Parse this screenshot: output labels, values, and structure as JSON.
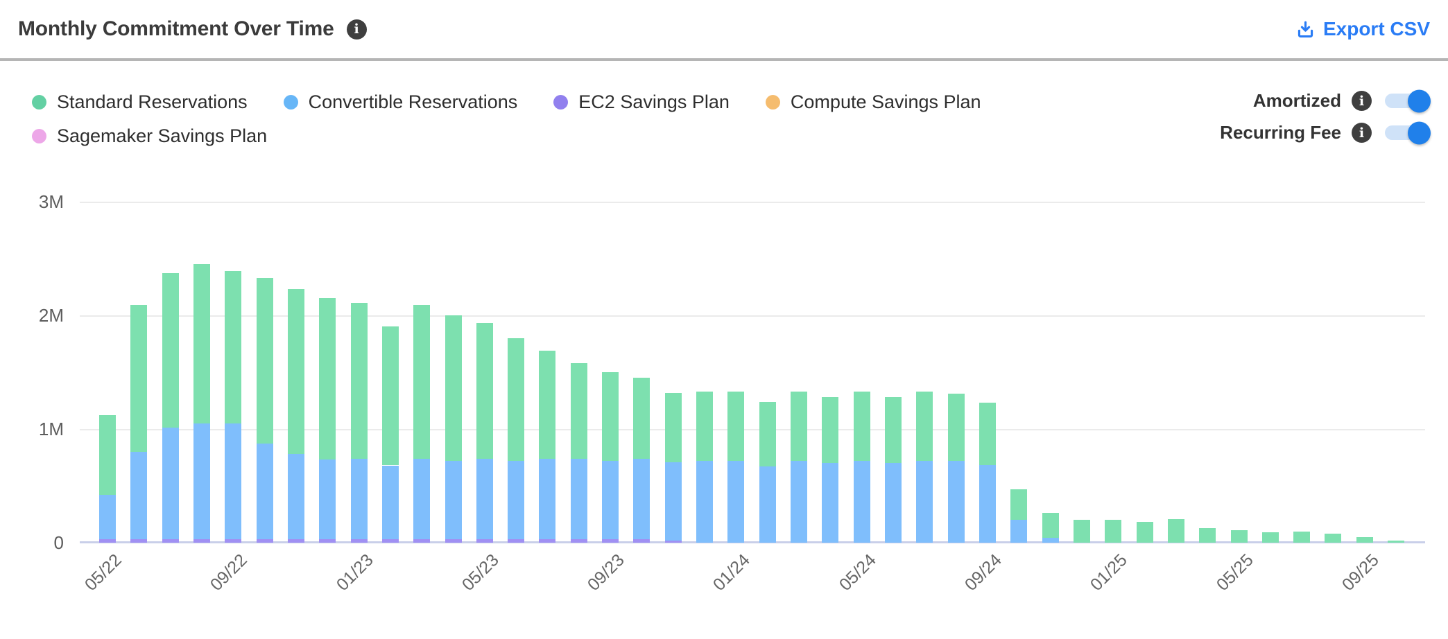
{
  "header": {
    "title": "Monthly Commitment Over Time",
    "export_label": "Export CSV",
    "accent_color": "#2a7cf5"
  },
  "legend": {
    "items": [
      {
        "label": "Standard Reservations",
        "color": "#63d0a3"
      },
      {
        "label": "Convertible Reservations",
        "color": "#67b6f7"
      },
      {
        "label": "EC2 Savings Plan",
        "color": "#9180ee"
      },
      {
        "label": "Compute Savings Plan",
        "color": "#f5bc6e"
      },
      {
        "label": "Sagemaker Savings Plan",
        "color": "#eda7e8"
      }
    ]
  },
  "toggles": [
    {
      "label": "Amortized",
      "state": "on"
    },
    {
      "label": "Recurring Fee",
      "state": "on"
    }
  ],
  "chart_data": {
    "type": "bar",
    "stacked": true,
    "title": "Monthly Commitment Over Time",
    "units": "millions",
    "ylim": [
      0,
      3
    ],
    "y_ticks": [
      "0",
      "1M",
      "2M",
      "3M"
    ],
    "grid": true,
    "legend_position": "top-left",
    "categories": [
      "05/22",
      "06/22",
      "07/22",
      "08/22",
      "09/22",
      "10/22",
      "11/22",
      "12/22",
      "01/23",
      "02/23",
      "03/23",
      "04/23",
      "05/23",
      "06/23",
      "07/23",
      "08/23",
      "09/23",
      "10/23",
      "11/23",
      "12/23",
      "01/24",
      "02/24",
      "03/24",
      "04/24",
      "05/24",
      "06/24",
      "07/24",
      "08/24",
      "09/24",
      "10/24",
      "11/24",
      "12/24",
      "01/25",
      "02/25",
      "03/25",
      "04/25",
      "05/25",
      "06/25",
      "07/25",
      "08/25",
      "09/25",
      "10/25"
    ],
    "x_tick_labels": [
      "05/22",
      "09/22",
      "01/23",
      "05/23",
      "09/23",
      "01/24",
      "05/24",
      "09/24",
      "01/25",
      "05/25",
      "09/25"
    ],
    "x_tick_every": 4,
    "stack_order": [
      "EC2 Savings Plan",
      "Sagemaker Savings Plan",
      "Compute Savings Plan",
      "Convertible Reservations",
      "Standard Reservations"
    ],
    "series": [
      {
        "name": "Standard Reservations",
        "color": "#7de0af",
        "values": [
          0.7,
          1.29,
          1.36,
          1.4,
          1.34,
          1.46,
          1.45,
          1.42,
          1.37,
          1.22,
          1.35,
          1.28,
          1.19,
          1.08,
          0.95,
          0.84,
          0.78,
          0.71,
          0.61,
          0.61,
          0.61,
          0.57,
          0.61,
          0.58,
          0.61,
          0.58,
          0.61,
          0.59,
          0.55,
          0.27,
          0.22,
          0.2,
          0.2,
          0.18,
          0.21,
          0.13,
          0.11,
          0.09,
          0.1,
          0.08,
          0.05,
          0.02
        ]
      },
      {
        "name": "Convertible Reservations",
        "color": "#7fbefc",
        "values": [
          0.39,
          0.77,
          0.98,
          1.02,
          1.02,
          0.84,
          0.75,
          0.7,
          0.71,
          0.65,
          0.71,
          0.69,
          0.71,
          0.69,
          0.71,
          0.71,
          0.69,
          0.71,
          0.69,
          0.72,
          0.72,
          0.67,
          0.72,
          0.7,
          0.72,
          0.7,
          0.72,
          0.72,
          0.68,
          0.2,
          0.04,
          0,
          0,
          0,
          0,
          0,
          0,
          0,
          0,
          0,
          0,
          0
        ]
      },
      {
        "name": "EC2 Savings Plan",
        "color": "#a090f3",
        "values": [
          0.03,
          0.03,
          0.03,
          0.03,
          0.03,
          0.03,
          0.03,
          0.03,
          0.03,
          0.03,
          0.03,
          0.03,
          0.03,
          0.03,
          0.03,
          0.03,
          0.03,
          0.03,
          0.02,
          0,
          0,
          0,
          0,
          0,
          0,
          0,
          0,
          0,
          0,
          0,
          0,
          0,
          0,
          0,
          0,
          0,
          0,
          0,
          0,
          0,
          0,
          0
        ]
      },
      {
        "name": "Compute Savings Plan",
        "color": "#f6bd70",
        "values": [
          0,
          0,
          0,
          0,
          0,
          0,
          0,
          0,
          0,
          0,
          0,
          0,
          0,
          0,
          0,
          0,
          0,
          0,
          0,
          0,
          0,
          0,
          0,
          0,
          0,
          0,
          0,
          0,
          0,
          0,
          0,
          0,
          0,
          0,
          0,
          0,
          0,
          0,
          0,
          0,
          0,
          0
        ]
      },
      {
        "name": "Sagemaker Savings Plan",
        "color": "#f0a9ea",
        "values": [
          0,
          0,
          0,
          0,
          0,
          0,
          0,
          0,
          0,
          0,
          0,
          0,
          0,
          0,
          0,
          0,
          0,
          0,
          0,
          0,
          0,
          0,
          0,
          0,
          0,
          0,
          0,
          0,
          0,
          0,
          0,
          0,
          0,
          0,
          0,
          0,
          0,
          0,
          0,
          0,
          0,
          0
        ]
      }
    ]
  }
}
